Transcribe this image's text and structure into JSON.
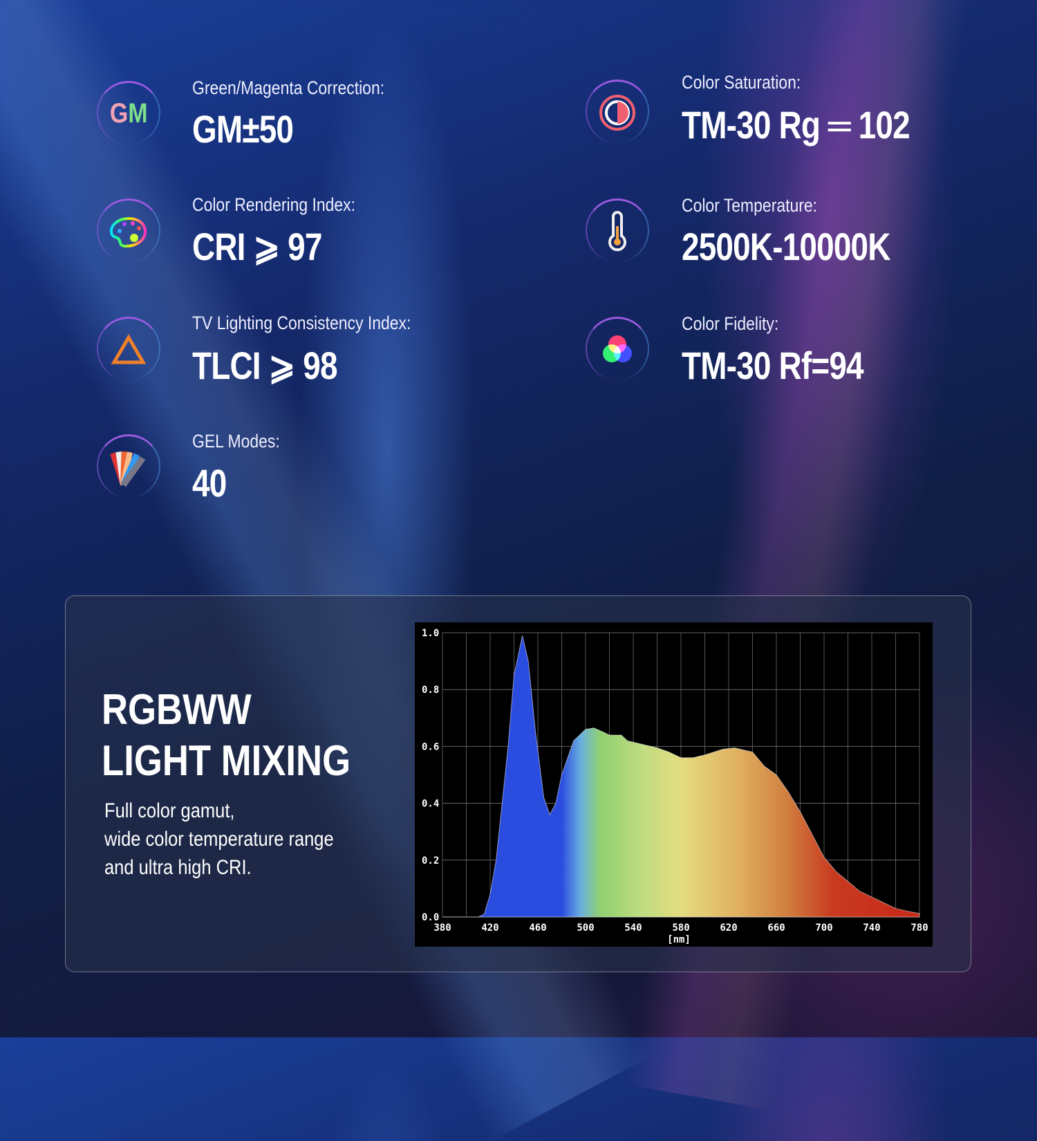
{
  "specs": [
    {
      "icon": "gm-icon",
      "icon_text": "GM",
      "label": "Green/Magenta Correction:",
      "value": "GM±50"
    },
    {
      "icon": "palette-icon",
      "label": "Color Rendering Index:",
      "value": "CRI ⩾ 97"
    },
    {
      "icon": "triangle-icon",
      "label": "TV Lighting Consistency Index:",
      "value": "TLCI ⩾ 98"
    },
    {
      "icon": "gel-swatch-icon",
      "label": "GEL Modes:",
      "value": "40"
    },
    {
      "icon": "saturation-icon",
      "label": "Color Saturation:",
      "value": "TM-30 Rg ═ 102"
    },
    {
      "icon": "thermometer-icon",
      "label": "Color Temperature:",
      "value": "2500K-10000K"
    },
    {
      "icon": "rgb-circles-icon",
      "label": "Color Fidelity:",
      "value": "TM-30 Rf=94"
    }
  ],
  "panel": {
    "title_line1": "RGBWW",
    "title_line2": "LIGHT MIXING",
    "desc_line1": "Full color gamut,",
    "desc_line2": "wide color temperature range",
    "desc_line3": "and ultra high CRI."
  },
  "chart_data": {
    "type": "area",
    "xlabel": "[nm]",
    "xlim": [
      380,
      780
    ],
    "ylim": [
      0,
      1.0
    ],
    "grid": true,
    "x_ticks": [
      380,
      420,
      460,
      500,
      540,
      580,
      620,
      660,
      700,
      740,
      780
    ],
    "y_ticks": [
      "0.0",
      "0.2",
      "0.4",
      "0.6",
      "0.8",
      "1.0"
    ],
    "fill": "visible spectrum gradient",
    "x": [
      380,
      410,
      415,
      420,
      425,
      430,
      435,
      440,
      447,
      452,
      458,
      465,
      470,
      475,
      480,
      490,
      500,
      507,
      515,
      520,
      530,
      535,
      545,
      560,
      570,
      580,
      590,
      600,
      615,
      625,
      640,
      650,
      660,
      670,
      680,
      690,
      700,
      710,
      720,
      730,
      740,
      750,
      760,
      770,
      780
    ],
    "y": [
      0,
      0,
      0.01,
      0.08,
      0.2,
      0.4,
      0.6,
      0.85,
      0.99,
      0.9,
      0.65,
      0.42,
      0.36,
      0.4,
      0.5,
      0.62,
      0.66,
      0.665,
      0.65,
      0.64,
      0.64,
      0.62,
      0.61,
      0.595,
      0.58,
      0.56,
      0.56,
      0.57,
      0.59,
      0.595,
      0.58,
      0.53,
      0.5,
      0.44,
      0.37,
      0.29,
      0.21,
      0.16,
      0.125,
      0.09,
      0.07,
      0.05,
      0.03,
      0.02,
      0.012
    ]
  }
}
